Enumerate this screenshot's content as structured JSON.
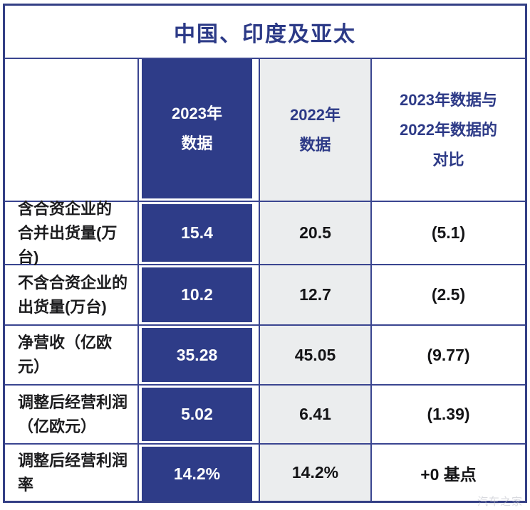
{
  "title": "中国、印度及亚太",
  "watermark": "汽车之家",
  "colors": {
    "band_blue": "#2e3c88",
    "line_blue": "#3a4590",
    "outer_border_blue": "#333f85",
    "header_gray": "#ebedee",
    "title_blue": "#2c3a87",
    "text_dark": "#1c1c1e",
    "band_text": "#ffffff"
  },
  "table": {
    "headers": {
      "label": "",
      "y2023": [
        "2023年",
        "数据"
      ],
      "y2022": [
        "2022年",
        "数据"
      ],
      "delta": [
        "2023年数据与",
        "2022年数据的",
        "对比"
      ]
    },
    "rows": [
      {
        "label_lines": [
          "含合资企业的",
          "合并出货量(万台)"
        ],
        "y2023": "15.4",
        "y2022": "20.5",
        "delta": "(5.1)"
      },
      {
        "label_lines": [
          "不含合资企业的",
          "出货量(万台)"
        ],
        "y2023": "10.2",
        "y2022": "12.7",
        "delta": "(2.5)"
      },
      {
        "label_lines": [
          "净营收（亿欧元）"
        ],
        "y2023": "35.28",
        "y2022": "45.05",
        "delta": "(9.77)"
      },
      {
        "label_lines": [
          "调整后经营利润",
          "（亿欧元）"
        ],
        "y2023": "5.02",
        "y2022": "6.41",
        "delta": "(1.39)"
      },
      {
        "label_lines": [
          "调整后经营利润率"
        ],
        "y2023": "14.2%",
        "y2022": "14.2%",
        "delta": "+0 基点"
      }
    ]
  },
  "chart_data": {
    "type": "table",
    "title": "中国、印度及亚太",
    "columns": [
      "",
      "2023年数据",
      "2022年数据",
      "2023年数据与2022年数据的对比"
    ],
    "rows": [
      [
        "含合资企业的合并出货量(万台)",
        "15.4",
        "20.5",
        "(5.1)"
      ],
      [
        "不含合资企业的出货量(万台)",
        "10.2",
        "12.7",
        "(2.5)"
      ],
      [
        "净营收（亿欧元）",
        "35.28",
        "45.05",
        "(9.77)"
      ],
      [
        "调整后经营利润（亿欧元）",
        "5.02",
        "6.41",
        "(1.39)"
      ],
      [
        "调整后经营利润率",
        "14.2%",
        "14.2%",
        "+0 基点"
      ]
    ],
    "layout_hints": {
      "highlight_column": "2023年数据",
      "highlight_style": "dark-blue band, white text",
      "secondary_column_style": "light-gray background",
      "negative_values_notation": "parentheses"
    }
  }
}
